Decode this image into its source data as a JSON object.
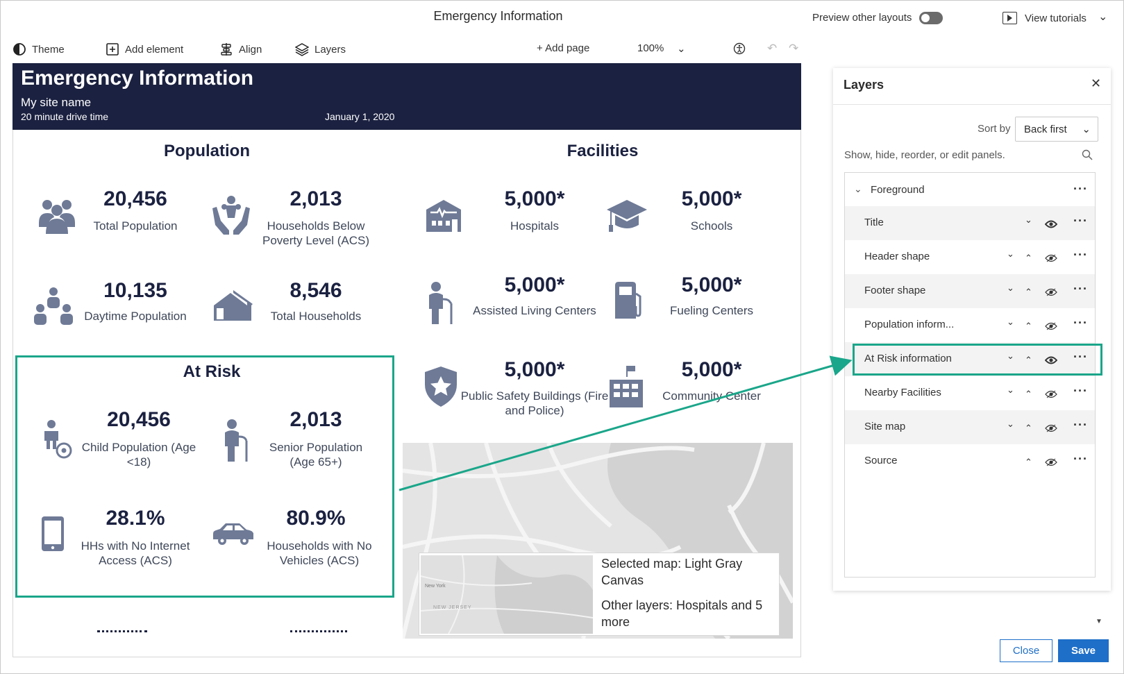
{
  "app": {
    "title": "Emergency Information",
    "preview_label": "Preview other layouts",
    "tutorials_label": "View tutorials"
  },
  "toolbar": {
    "theme": "Theme",
    "add_element": "Add element",
    "align": "Align",
    "layers": "Layers",
    "add_page": "+ Add page",
    "zoom": "100%"
  },
  "infographic": {
    "title": "Emergency Information",
    "site_name": "My site name",
    "drive_time": "20 minute drive time",
    "date": "January 1, 2020",
    "population": {
      "title": "Population",
      "stats": [
        {
          "value": "20,456",
          "label": "Total Population",
          "icon": "people-group-icon"
        },
        {
          "value": "2,013",
          "label": "Households Below Poverty Level (ACS)",
          "icon": "hands-family-icon"
        },
        {
          "value": "10,135",
          "label": "Daytime Population",
          "icon": "people-triad-icon"
        },
        {
          "value": "8,546",
          "label": "Total Households",
          "icon": "house-icon"
        }
      ]
    },
    "facilities": {
      "title": "Facilities",
      "stats": [
        {
          "value": "5,000*",
          "label": "Hospitals",
          "icon": "hospital-icon"
        },
        {
          "value": "5,000*",
          "label": "Schools",
          "icon": "graduation-cap-icon"
        },
        {
          "value": "5,000*",
          "label": "Assisted Living Centers",
          "icon": "elderly-icon"
        },
        {
          "value": "5,000*",
          "label": "Fueling Centers",
          "icon": "fuel-pump-icon"
        },
        {
          "value": "5,000*",
          "label": "Public Safety Buildings (Fire and Police)",
          "icon": "shield-star-icon"
        },
        {
          "value": "5,000*",
          "label": "Community Center",
          "icon": "building-flag-icon"
        }
      ]
    },
    "at_risk": {
      "title": "At Risk",
      "stats": [
        {
          "value": "20,456",
          "label": "Child Population (Age <18)",
          "icon": "child-icon"
        },
        {
          "value": "2,013",
          "label": "Senior Population (Age 65+)",
          "icon": "senior-icon"
        },
        {
          "value": "28.1%",
          "label": "HHs with No Internet Access (ACS)",
          "icon": "tablet-icon"
        },
        {
          "value": "80.9%",
          "label": "Households with No Vehicles (ACS)",
          "icon": "car-icon"
        }
      ]
    },
    "map": {
      "selected": "Selected map: Light Gray Canvas",
      "other_layers": "Other layers: Hospitals and 5 more",
      "mini_labels": [
        "New York",
        "NEW JERSEY"
      ]
    }
  },
  "layers_panel": {
    "title": "Layers",
    "sort_label": "Sort by",
    "sort_value": "Back first",
    "hint": "Show, hide, reorder, or edit panels.",
    "group": "Foreground",
    "items": [
      {
        "label": "Title"
      },
      {
        "label": "Header shape"
      },
      {
        "label": "Footer shape"
      },
      {
        "label": "Population inform..."
      },
      {
        "label": "At Risk information"
      },
      {
        "label": "Nearby Facilities"
      },
      {
        "label": "Site map"
      },
      {
        "label": "Source"
      }
    ],
    "selected_item": "At Risk information",
    "close_label": "Close",
    "save_label": "Save"
  },
  "colors": {
    "header_bg": "#1b2140",
    "accent": "#1aa68a",
    "icon": "#6e7a96",
    "primary_button": "#1e6fc8"
  }
}
